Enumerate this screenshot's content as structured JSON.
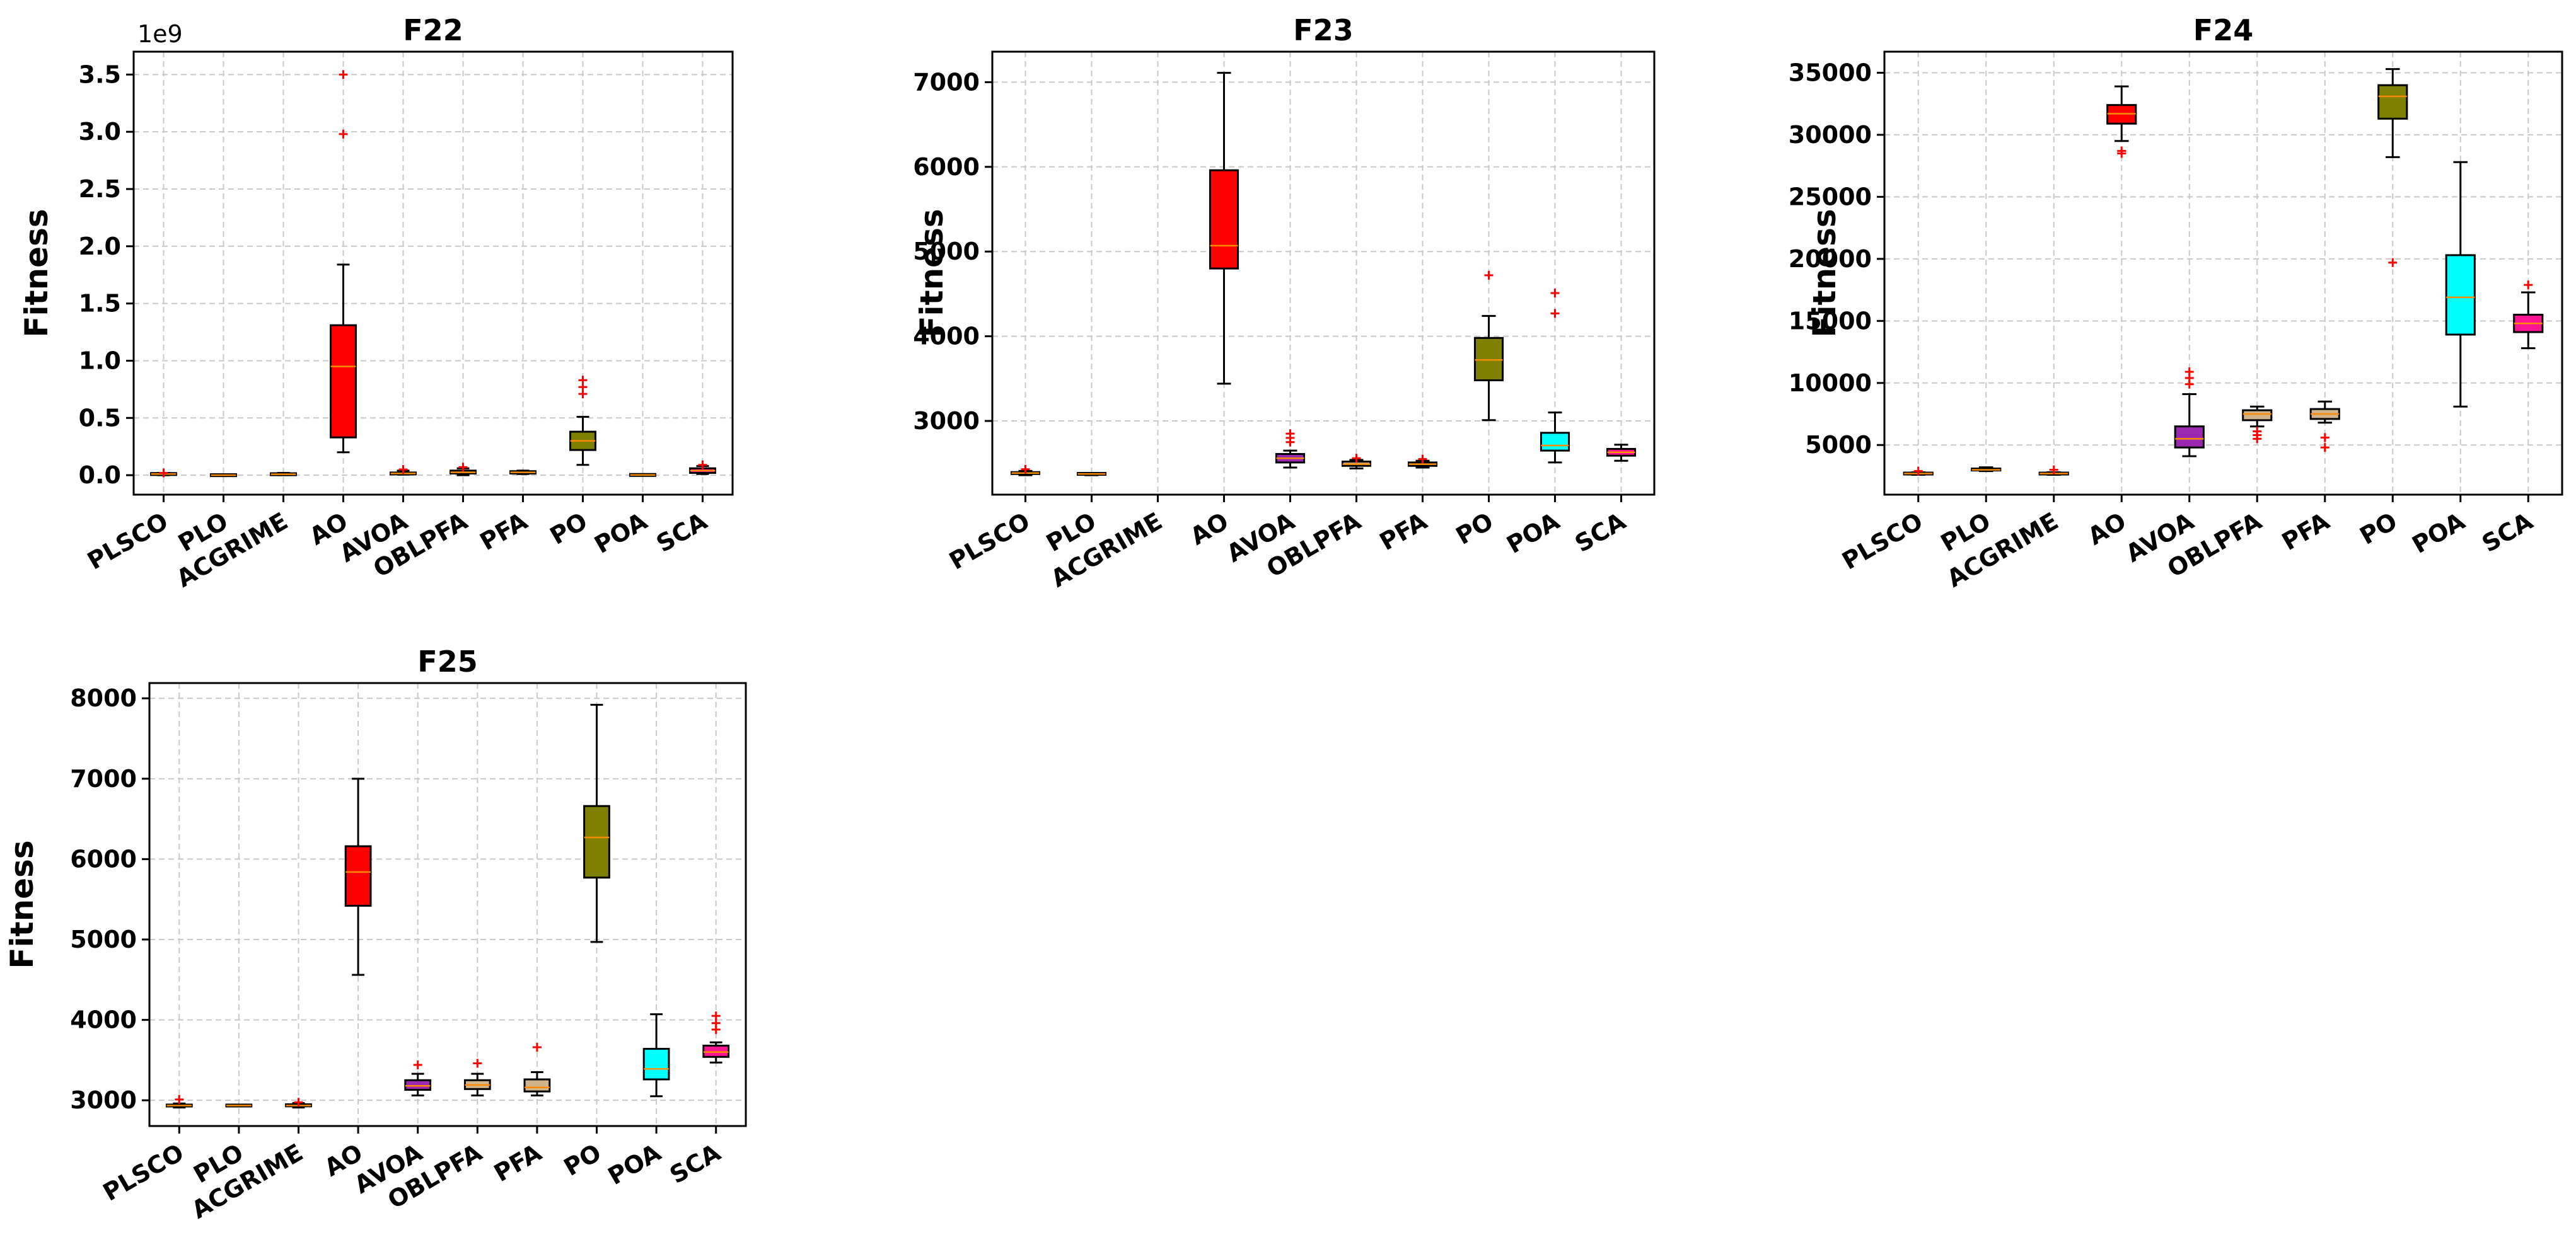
{
  "chart_data": [
    {
      "type": "box",
      "title": "F22",
      "ylabel": "Fitness",
      "y_offset_label": "1e9",
      "categories": [
        "PLSCO",
        "PLO",
        "ACGRIME",
        "AO",
        "AVOA",
        "OBLPFA",
        "PFA",
        "PO",
        "POA",
        "SCA"
      ],
      "ylim": [
        -0.17,
        3.7
      ],
      "yticks": [
        0.0,
        0.5,
        1.0,
        1.5,
        2.0,
        2.5,
        3.0,
        3.5
      ],
      "ytick_labels": [
        "0.0",
        "0.5",
        "1.0",
        "1.5",
        "2.0",
        "2.5",
        "3.0",
        "3.5"
      ],
      "boxes": [
        {
          "name": "PLSCO",
          "color": "#fa8072",
          "min": 0.0,
          "q1": 0.005,
          "median": 0.01,
          "q3": 0.015,
          "max": 0.02,
          "outliers": [
            0.02
          ]
        },
        {
          "name": "PLO",
          "color": "#ffa500",
          "min": 0.0,
          "q1": 0.0,
          "median": 0.0,
          "q3": 0.0,
          "max": 0.0,
          "outliers": []
        },
        {
          "name": "ACGRIME",
          "color": "#fa8072",
          "min": 0.0,
          "q1": 0.005,
          "median": 0.008,
          "q3": 0.012,
          "max": 0.02,
          "outliers": []
        },
        {
          "name": "AO",
          "color": "#ff0000",
          "min": 0.2,
          "q1": 0.33,
          "median": 0.95,
          "q3": 1.31,
          "max": 1.84,
          "outliers": [
            2.98,
            3.5
          ]
        },
        {
          "name": "AVOA",
          "color": "#9c27b0",
          "min": 0.005,
          "q1": 0.01,
          "median": 0.015,
          "q3": 0.02,
          "max": 0.04,
          "outliers": [
            0.05
          ]
        },
        {
          "name": "OBLPFA",
          "color": "#d2b48c",
          "min": 0.0,
          "q1": 0.015,
          "median": 0.025,
          "q3": 0.04,
          "max": 0.06,
          "outliers": [
            0.07
          ]
        },
        {
          "name": "PFA",
          "color": "#d2b48c",
          "min": 0.01,
          "q1": 0.015,
          "median": 0.025,
          "q3": 0.035,
          "max": 0.04,
          "outliers": []
        },
        {
          "name": "PO",
          "color": "#808000",
          "min": 0.09,
          "q1": 0.22,
          "median": 0.3,
          "q3": 0.38,
          "max": 0.51,
          "outliers": [
            0.71,
            0.77,
            0.83
          ]
        },
        {
          "name": "POA",
          "color": "#00ffff",
          "min": 0.0,
          "q1": 0.001,
          "median": 0.002,
          "q3": 0.003,
          "max": 0.004,
          "outliers": []
        },
        {
          "name": "SCA",
          "color": "#ff1493",
          "min": 0.01,
          "q1": 0.02,
          "median": 0.04,
          "q3": 0.06,
          "max": 0.08,
          "outliers": [
            0.09
          ]
        }
      ]
    },
    {
      "type": "box",
      "title": "F23",
      "ylabel": "Fitness",
      "categories": [
        "PLSCO",
        "PLO",
        "ACGRIME",
        "AO",
        "AVOA",
        "OBLPFA",
        "PFA",
        "PO",
        "POA",
        "SCA"
      ],
      "ylim": [
        2130,
        7360
      ],
      "yticks": [
        3000,
        4000,
        5000,
        6000,
        7000
      ],
      "ytick_labels": [
        "3000",
        "4000",
        "5000",
        "6000",
        "7000"
      ],
      "boxes": [
        {
          "name": "PLSCO",
          "color": "#fa8072",
          "min": 2360,
          "q1": 2375,
          "median": 2385,
          "q3": 2395,
          "max": 2410,
          "outliers": [
            2430
          ]
        },
        {
          "name": "PLO",
          "color": "#ffa500",
          "min": 2360,
          "q1": 2370,
          "median": 2375,
          "q3": 2380,
          "max": 2385,
          "outliers": []
        },
        {
          "name": "ACGRIME",
          "color": "#fa8072",
          "min": null,
          "q1": null,
          "median": null,
          "q3": null,
          "max": null,
          "outliers": []
        },
        {
          "name": "AO",
          "color": "#ff0000",
          "min": 3440,
          "q1": 4800,
          "median": 5070,
          "q3": 5960,
          "max": 7110,
          "outliers": []
        },
        {
          "name": "AVOA",
          "color": "#9c27b0",
          "min": 2450,
          "q1": 2510,
          "median": 2560,
          "q3": 2610,
          "max": 2650,
          "outliers": [
            2750,
            2800,
            2850
          ]
        },
        {
          "name": "OBLPFA",
          "color": "#d2b48c",
          "min": 2440,
          "q1": 2470,
          "median": 2490,
          "q3": 2520,
          "max": 2540,
          "outliers": [
            2560
          ]
        },
        {
          "name": "PFA",
          "color": "#d2b48c",
          "min": 2450,
          "q1": 2470,
          "median": 2490,
          "q3": 2510,
          "max": 2530,
          "outliers": [
            2550
          ]
        },
        {
          "name": "PO",
          "color": "#808000",
          "min": 3010,
          "q1": 3480,
          "median": 3720,
          "q3": 3980,
          "max": 4240,
          "outliers": [
            4720
          ]
        },
        {
          "name": "POA",
          "color": "#00ffff",
          "min": 2510,
          "q1": 2650,
          "median": 2710,
          "q3": 2860,
          "max": 3100,
          "outliers": [
            4270,
            4510
          ]
        },
        {
          "name": "SCA",
          "color": "#ff1493",
          "min": 2530,
          "q1": 2590,
          "median": 2630,
          "q3": 2670,
          "max": 2720,
          "outliers": []
        }
      ]
    },
    {
      "type": "box",
      "title": "F24",
      "ylabel": "Fitness",
      "categories": [
        "PLSCO",
        "PLO",
        "ACGRIME",
        "AO",
        "AVOA",
        "OBLPFA",
        "PFA",
        "PO",
        "POA",
        "SCA"
      ],
      "ylim": [
        1000,
        36700
      ],
      "yticks": [
        5000,
        10000,
        15000,
        20000,
        25000,
        30000,
        35000
      ],
      "ytick_labels": [
        "5000",
        "10000",
        "15000",
        "20000",
        "25000",
        "30000",
        "35000"
      ],
      "boxes": [
        {
          "name": "PLSCO",
          "color": "#fa8072",
          "min": 2600,
          "q1": 2650,
          "median": 2700,
          "q3": 2750,
          "max": 2800,
          "outliers": [
            2900
          ]
        },
        {
          "name": "PLO",
          "color": "#ffa500",
          "min": 2900,
          "q1": 2950,
          "median": 3000,
          "q3": 3100,
          "max": 3200,
          "outliers": []
        },
        {
          "name": "ACGRIME",
          "color": "#fa8072",
          "min": 2600,
          "q1": 2650,
          "median": 2700,
          "q3": 2750,
          "max": 2800,
          "outliers": [
            3000
          ]
        },
        {
          "name": "AO",
          "color": "#ff0000",
          "min": 29500,
          "q1": 30900,
          "median": 31700,
          "q3": 32400,
          "max": 33900,
          "outliers": [
            28500,
            28700
          ]
        },
        {
          "name": "AVOA",
          "color": "#9c27b0",
          "min": 4100,
          "q1": 4800,
          "median": 5500,
          "q3": 6500,
          "max": 9100,
          "outliers": [
            9900,
            10400,
            10900
          ]
        },
        {
          "name": "OBLPFA",
          "color": "#d2b48c",
          "min": 6500,
          "q1": 7000,
          "median": 7500,
          "q3": 7800,
          "max": 8100,
          "outliers": [
            5500,
            5800,
            6100
          ]
        },
        {
          "name": "PFA",
          "color": "#d2b48c",
          "min": 6800,
          "q1": 7100,
          "median": 7500,
          "q3": 7900,
          "max": 8500,
          "outliers": [
            4800,
            5600
          ]
        },
        {
          "name": "PO",
          "color": "#808000",
          "min": 28200,
          "q1": 31300,
          "median": 33100,
          "q3": 34000,
          "max": 35300,
          "outliers": [
            19700
          ]
        },
        {
          "name": "POA",
          "color": "#00ffff",
          "min": 8100,
          "q1": 13900,
          "median": 16900,
          "q3": 20300,
          "max": 27800,
          "outliers": []
        },
        {
          "name": "SCA",
          "color": "#ff1493",
          "min": 12800,
          "q1": 14100,
          "median": 14800,
          "q3": 15500,
          "max": 17300,
          "outliers": [
            17900
          ]
        }
      ]
    },
    {
      "type": "box",
      "title": "F25",
      "ylabel": "Fitness",
      "categories": [
        "PLSCO",
        "PLO",
        "ACGRIME",
        "AO",
        "AVOA",
        "OBLPFA",
        "PFA",
        "PO",
        "POA",
        "SCA"
      ],
      "ylim": [
        2680,
        8190
      ],
      "yticks": [
        3000,
        4000,
        5000,
        6000,
        7000,
        8000
      ],
      "ytick_labels": [
        "3000",
        "4000",
        "5000",
        "6000",
        "7000",
        "8000"
      ],
      "boxes": [
        {
          "name": "PLSCO",
          "color": "#fa8072",
          "min": 2910,
          "q1": 2925,
          "median": 2935,
          "q3": 2945,
          "max": 2960,
          "outliers": [
            3010
          ]
        },
        {
          "name": "PLO",
          "color": "#ffa500",
          "min": 2925,
          "q1": 2930,
          "median": 2935,
          "q3": 2940,
          "max": 2945,
          "outliers": []
        },
        {
          "name": "ACGRIME",
          "color": "#fa8072",
          "min": 2910,
          "q1": 2925,
          "median": 2935,
          "q3": 2950,
          "max": 2965,
          "outliers": [
            2975
          ]
        },
        {
          "name": "AO",
          "color": "#ff0000",
          "min": 4560,
          "q1": 5420,
          "median": 5840,
          "q3": 6160,
          "max": 7000,
          "outliers": []
        },
        {
          "name": "AVOA",
          "color": "#9c27b0",
          "min": 3060,
          "q1": 3130,
          "median": 3180,
          "q3": 3250,
          "max": 3330,
          "outliers": [
            3440
          ]
        },
        {
          "name": "OBLPFA",
          "color": "#d2b48c",
          "min": 3060,
          "q1": 3140,
          "median": 3190,
          "q3": 3250,
          "max": 3330,
          "outliers": [
            3460
          ]
        },
        {
          "name": "PFA",
          "color": "#d2b48c",
          "min": 3060,
          "q1": 3110,
          "median": 3160,
          "q3": 3260,
          "max": 3350,
          "outliers": [
            3660
          ]
        },
        {
          "name": "PO",
          "color": "#808000",
          "min": 4970,
          "q1": 5770,
          "median": 6270,
          "q3": 6660,
          "max": 7920,
          "outliers": []
        },
        {
          "name": "POA",
          "color": "#00ffff",
          "min": 3050,
          "q1": 3260,
          "median": 3390,
          "q3": 3640,
          "max": 4070,
          "outliers": []
        },
        {
          "name": "SCA",
          "color": "#ff1493",
          "min": 3470,
          "q1": 3540,
          "median": 3600,
          "q3": 3680,
          "max": 3720,
          "outliers": [
            3880,
            3960,
            4050
          ]
        }
      ]
    }
  ]
}
